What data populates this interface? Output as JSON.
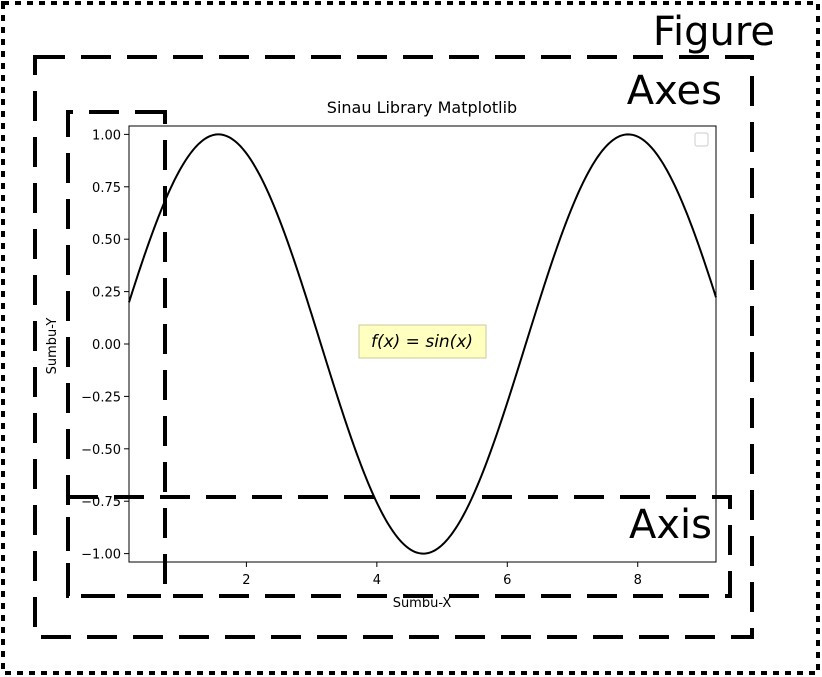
{
  "annotations": {
    "figure_label": "Figure",
    "axes_label": "Axes",
    "axis_label": "Axis"
  },
  "chart_data": {
    "type": "line",
    "title": "Sinau Library Matplotlib",
    "xlabel": "Sumbu-X",
    "ylabel": "Sumbu-Y",
    "function": "sin(x)",
    "x_range": [
      0.2,
      9.2
    ],
    "xlim": [
      0.2,
      9.2
    ],
    "ylim": [
      -1.04,
      1.04
    ],
    "x_ticks": [
      2,
      4,
      6,
      8
    ],
    "x_tick_labels": [
      "2",
      "4",
      "6",
      "8"
    ],
    "y_ticks": [
      1.0,
      0.75,
      0.5,
      0.25,
      0.0,
      -0.25,
      -0.5,
      -0.75,
      -1.0
    ],
    "y_tick_labels": [
      "1.00",
      "0.75",
      "0.50",
      "0.25",
      "0.00",
      "−0.25",
      "−0.50",
      "−0.75",
      "−1.00"
    ],
    "series": [
      {
        "color": "#000000",
        "x": [
          0.2,
          0.5,
          1.0,
          1.5708,
          2.0,
          2.5,
          3.0,
          3.1416,
          3.5,
          4.0,
          4.5,
          4.7124,
          5.0,
          5.5,
          6.0,
          6.2832,
          6.5,
          7.0,
          7.5,
          7.854,
          8.0,
          8.5,
          9.0,
          9.2
        ],
        "y": [
          0.199,
          0.479,
          0.841,
          1.0,
          0.909,
          0.598,
          0.141,
          0.0,
          -0.351,
          -0.757,
          -0.978,
          -1.0,
          -0.959,
          -0.706,
          -0.279,
          0.0,
          0.215,
          0.657,
          0.938,
          1.0,
          0.989,
          0.798,
          0.412,
          0.223
        ]
      }
    ],
    "annotation_text": "f(x) = sin(x)",
    "annotation_box_color": "#ffffc0",
    "legend": {
      "placement": "top-right",
      "entries": []
    },
    "grid": false
  }
}
